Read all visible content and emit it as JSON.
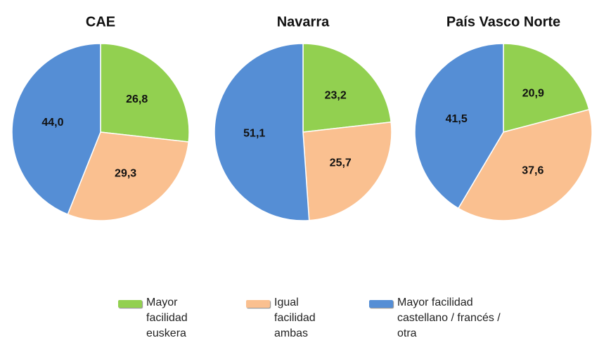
{
  "chart_data": [
    {
      "type": "pie",
      "title": "CAE",
      "values": [
        26.8,
        29.3,
        44.0
      ],
      "value_labels": [
        "26,8",
        "29,3",
        "44,0"
      ]
    },
    {
      "type": "pie",
      "title": "Navarra",
      "values": [
        23.2,
        25.7,
        51.1
      ],
      "value_labels": [
        "23,2",
        "25,7",
        "51,1"
      ]
    },
    {
      "type": "pie",
      "title": "País Vasco Norte",
      "values": [
        20.9,
        37.6,
        41.5
      ],
      "value_labels": [
        "20,9",
        "37,6",
        "41,5"
      ]
    }
  ],
  "legend": {
    "labels": [
      "Mayor facilidad euskera",
      "Igual facilidad ambas",
      "Mayor facilidad castellano / francés / otra"
    ],
    "colors": [
      "#92d050",
      "#fac090",
      "#558ed5"
    ]
  }
}
